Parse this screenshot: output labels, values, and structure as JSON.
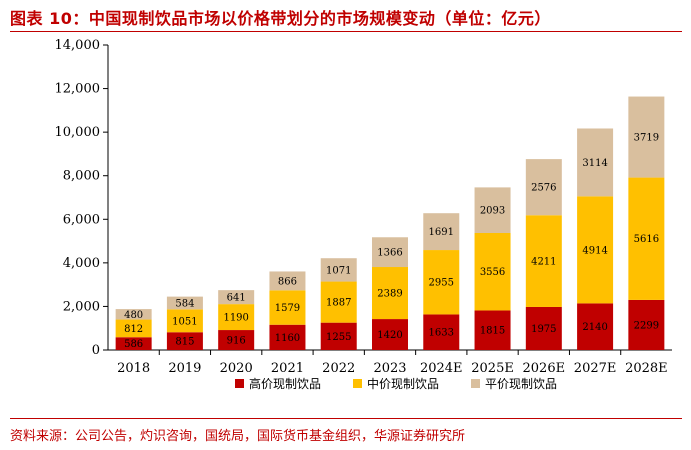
{
  "title": "图表 10：中国现制饮品市场以价格带划分的市场规模变动（单位：亿元）",
  "source": "资料来源：公司公告，灼识咨询，国统局，国际货币基金组织，华源证券研究所",
  "chart_data": {
    "type": "bar",
    "stacked": true,
    "categories": [
      "2018",
      "2019",
      "2020",
      "2021",
      "2022",
      "2023",
      "2024E",
      "2025E",
      "2026E",
      "2027E",
      "2028E"
    ],
    "series": [
      {
        "name": "高价现制饮品",
        "color": "#c00000",
        "label_color": "#ffffff",
        "values": [
          586,
          815,
          916,
          1160,
          1255,
          1420,
          1633,
          1815,
          1975,
          2140,
          2299
        ]
      },
      {
        "name": "中价现制饮品",
        "color": "#ffc000",
        "label_color": "#000000",
        "values": [
          812,
          1051,
          1190,
          1579,
          1887,
          2389,
          2955,
          3556,
          4211,
          4914,
          5616
        ]
      },
      {
        "name": "平价现制饮品",
        "color": "#d9bf9e",
        "label_color": "#000000",
        "values": [
          480,
          584,
          641,
          866,
          1071,
          1366,
          1691,
          2093,
          2576,
          3114,
          3719
        ]
      }
    ],
    "yticks": [
      "0",
      "2,000",
      "4,000",
      "6,000",
      "8,000",
      "10,000",
      "12,000",
      "14,000"
    ],
    "ylim": [
      0,
      14000
    ],
    "grid": false,
    "legend": "bottom"
  }
}
